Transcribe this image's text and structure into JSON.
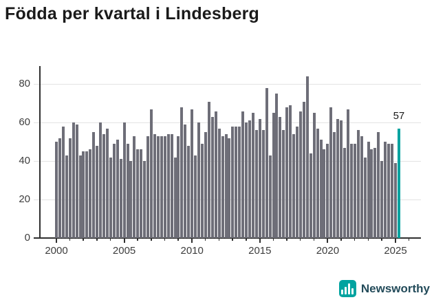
{
  "header": {
    "title": "Födda per kvartal i Lindesberg"
  },
  "chart_data": {
    "type": "bar",
    "title": "Födda per kvartal i Lindesberg",
    "frequency": "quarterly",
    "start_period": "2000-Q1",
    "end_period": "2025-Q2",
    "values": [
      50,
      52,
      58,
      43,
      52,
      60,
      59,
      43,
      45,
      45,
      46,
      55,
      48,
      60,
      54,
      57,
      42,
      49,
      51,
      41,
      60,
      49,
      40,
      53,
      46,
      46,
      40,
      53,
      67,
      54,
      53,
      53,
      53,
      54,
      54,
      42,
      53,
      68,
      59,
      48,
      67,
      43,
      60,
      49,
      55,
      71,
      63,
      66,
      57,
      53,
      54,
      52,
      58,
      58,
      58,
      66,
      60,
      61,
      65,
      56,
      62,
      56,
      78,
      43,
      65,
      75,
      63,
      56,
      68,
      69,
      54,
      58,
      66,
      71,
      84,
      44,
      65,
      57,
      51,
      46,
      49,
      68,
      55,
      62,
      61,
      47,
      67,
      49,
      49,
      56,
      53,
      42,
      50,
      46,
      47,
      55,
      40,
      50,
      49,
      49,
      39,
      57
    ],
    "highlight": {
      "index": 101,
      "period": "2025-Q2",
      "value": 57,
      "label": "57"
    },
    "y_ticks": [
      0,
      20,
      40,
      60,
      80
    ],
    "ylim": [
      0,
      88
    ],
    "x_axis_years": {
      "start": 2000,
      "end": 2026,
      "labeled": [
        2000,
        2005,
        2010,
        2015,
        2020,
        2025
      ]
    },
    "grid": "horizontal",
    "legend": "none",
    "colors": {
      "bar": "#6e6e78",
      "highlight": "#00a3a0",
      "grid": "#e3e3e3",
      "axis": "#2f2f2f",
      "text": "#3d3d3d",
      "title": "#1a1a1a"
    }
  },
  "footer": {
    "brand": "Newsworthy",
    "logo_icon": "bar-chart-icon"
  }
}
